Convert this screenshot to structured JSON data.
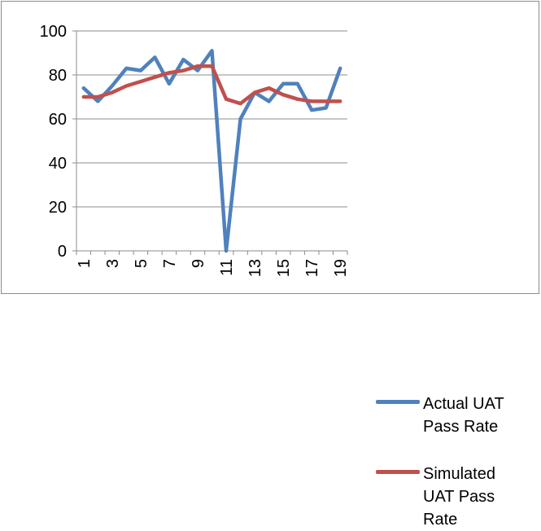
{
  "chart_data": {
    "type": "line",
    "x": [
      1,
      2,
      3,
      4,
      5,
      6,
      7,
      8,
      9,
      10,
      11,
      12,
      13,
      14,
      15,
      16,
      17,
      18,
      19
    ],
    "categories": [
      "1",
      "2",
      "3",
      "4",
      "5",
      "6",
      "7",
      "8",
      "9",
      "10",
      "11",
      "12",
      "13",
      "14",
      "15",
      "16",
      "17",
      "18",
      "19"
    ],
    "tick_labels_x": [
      "1",
      "3",
      "5",
      "7",
      "9",
      "11",
      "13",
      "15",
      "17",
      "19"
    ],
    "tick_labels_y": [
      "0",
      "20",
      "40",
      "60",
      "80",
      "100"
    ],
    "ylim": [
      0,
      100
    ],
    "grid": "horizontal",
    "legend_position": "right",
    "title": "",
    "xlabel": "",
    "ylabel": "",
    "series": [
      {
        "name": "Actual UAT Pass Rate",
        "color": "#4F81BD",
        "values": [
          74,
          68,
          75,
          83,
          82,
          88,
          76,
          87,
          82,
          91,
          0,
          60,
          72,
          68,
          76,
          76,
          64,
          65,
          83
        ]
      },
      {
        "name": "Simulated UAT Pass Rate",
        "color": "#C0504D",
        "values": [
          70,
          70,
          72,
          75,
          77,
          79,
          81,
          82,
          84,
          84,
          69,
          67,
          72,
          74,
          71,
          69,
          68,
          68,
          68
        ]
      }
    ]
  }
}
